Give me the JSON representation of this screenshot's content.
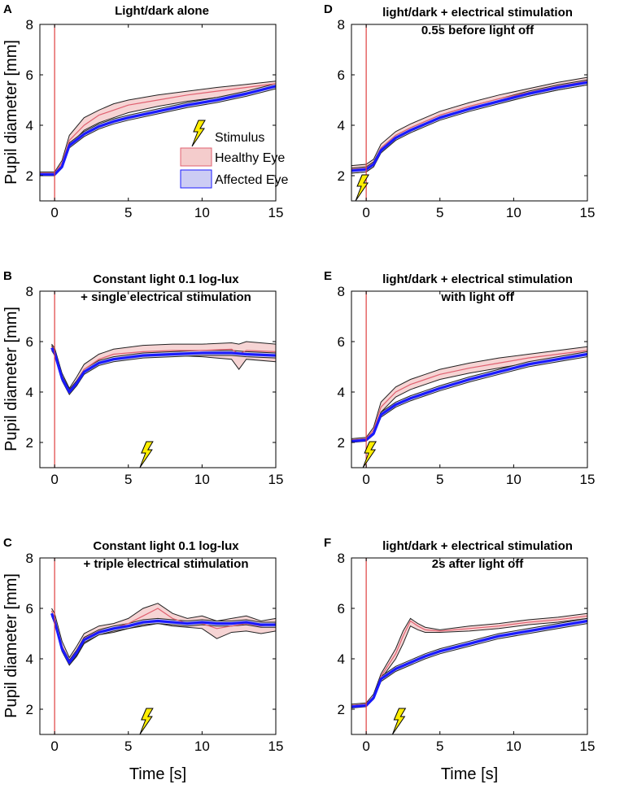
{
  "figure": {
    "ylabel": "Pupil diameter [mm]",
    "xlabel": "Time [s]"
  },
  "legend": {
    "stimulus": "Stimulus",
    "healthy": "Healthy Eye",
    "affected": "Affected Eye"
  },
  "colors": {
    "healthy_fill": "#f4cccc",
    "healthy_line": "#e06070",
    "affected_fill": "#ccccf4",
    "affected_line": "#1a1aff",
    "bound": "#222222",
    "stim_line": "#e04040",
    "bolt": "#ffee00"
  },
  "chart_data": [
    {
      "panel": "A",
      "title_lines": [
        "Light/dark alone"
      ],
      "type": "line",
      "xlim": [
        -1,
        15
      ],
      "ylim": [
        1,
        8
      ],
      "xticks": [
        "0",
        "5",
        "10",
        "15"
      ],
      "yticks": [
        "2",
        "4",
        "6",
        "8"
      ],
      "light_off_t": 0,
      "stimulus_t": null,
      "series": [
        {
          "name": "Healthy Eye",
          "t": [
            -1,
            0,
            0.5,
            1,
            2,
            3,
            4,
            5,
            7,
            9,
            11,
            13,
            15
          ],
          "mean": [
            2.1,
            2.1,
            2.5,
            3.4,
            4.0,
            4.4,
            4.6,
            4.8,
            5.0,
            5.2,
            5.35,
            5.5,
            5.65
          ],
          "lower": [
            2.05,
            2.05,
            2.4,
            3.2,
            3.8,
            4.1,
            4.3,
            4.5,
            4.75,
            4.95,
            5.1,
            5.3,
            5.5
          ],
          "upper": [
            2.15,
            2.15,
            2.6,
            3.6,
            4.3,
            4.6,
            4.85,
            5.0,
            5.2,
            5.35,
            5.5,
            5.62,
            5.75
          ]
        },
        {
          "name": "Affected Eye",
          "t": [
            -1,
            0,
            0.5,
            1,
            2,
            3,
            4,
            5,
            7,
            9,
            11,
            13,
            15
          ],
          "mean": [
            2.05,
            2.05,
            2.35,
            3.2,
            3.65,
            3.95,
            4.15,
            4.3,
            4.55,
            4.8,
            5.0,
            5.25,
            5.55
          ],
          "lower": [
            2.0,
            2.0,
            2.3,
            3.1,
            3.55,
            3.85,
            4.05,
            4.2,
            4.45,
            4.7,
            4.9,
            5.15,
            5.45
          ],
          "upper": [
            2.1,
            2.1,
            2.4,
            3.3,
            3.75,
            4.05,
            4.25,
            4.4,
            4.65,
            4.9,
            5.1,
            5.35,
            5.65
          ]
        }
      ]
    },
    {
      "panel": "D",
      "title_lines": [
        "light/dark + electrical stimulation",
        "0.5s before light off"
      ],
      "type": "line",
      "xlim": [
        -1,
        15
      ],
      "ylim": [
        1,
        8
      ],
      "xticks": [
        "0",
        "5",
        "10",
        "15"
      ],
      "yticks": [
        "2",
        "4",
        "6",
        "8"
      ],
      "light_off_t": 0,
      "stimulus_t": -0.5,
      "series": [
        {
          "name": "Healthy Eye",
          "t": [
            -1,
            0,
            0.5,
            1,
            2,
            3,
            4,
            5,
            7,
            9,
            11,
            13,
            15
          ],
          "mean": [
            2.25,
            2.3,
            2.5,
            3.1,
            3.6,
            3.9,
            4.15,
            4.4,
            4.75,
            5.05,
            5.3,
            5.55,
            5.75
          ],
          "lower": [
            2.1,
            2.15,
            2.35,
            2.95,
            3.45,
            3.75,
            4.0,
            4.25,
            4.6,
            4.9,
            5.15,
            5.4,
            5.6
          ],
          "upper": [
            2.4,
            2.45,
            2.65,
            3.25,
            3.75,
            4.05,
            4.3,
            4.55,
            4.9,
            5.2,
            5.45,
            5.7,
            5.9
          ]
        },
        {
          "name": "Affected Eye",
          "t": [
            -1,
            0,
            0.5,
            1,
            2,
            3,
            4,
            5,
            7,
            9,
            11,
            13,
            15
          ],
          "mean": [
            2.2,
            2.25,
            2.45,
            3.0,
            3.5,
            3.8,
            4.05,
            4.3,
            4.65,
            4.95,
            5.25,
            5.5,
            5.7
          ],
          "lower": [
            2.1,
            2.15,
            2.35,
            2.9,
            3.4,
            3.7,
            3.95,
            4.2,
            4.55,
            4.85,
            5.15,
            5.4,
            5.6
          ],
          "upper": [
            2.3,
            2.35,
            2.55,
            3.1,
            3.6,
            3.9,
            4.15,
            4.4,
            4.75,
            5.05,
            5.35,
            5.6,
            5.8
          ]
        }
      ]
    },
    {
      "panel": "B",
      "title_lines": [
        "Constant light 0.1 log-lux",
        "+ single electrical stimulation"
      ],
      "type": "line",
      "xlim": [
        -1,
        15
      ],
      "ylim": [
        1,
        8
      ],
      "xticks": [
        "0",
        "5",
        "10",
        "15"
      ],
      "yticks": [
        "2",
        "4",
        "6",
        "8"
      ],
      "light_off_t": 0,
      "stimulus_t": 6,
      "series": [
        {
          "name": "Healthy Eye",
          "t": [
            -0.2,
            0,
            0.5,
            1,
            1.5,
            2,
            3,
            4,
            6,
            8,
            10,
            12,
            12.5,
            13,
            15
          ],
          "mean": [
            5.8,
            5.6,
            4.6,
            4.05,
            4.4,
            4.9,
            5.3,
            5.5,
            5.6,
            5.65,
            5.65,
            5.7,
            5.5,
            5.65,
            5.6
          ],
          "lower": [
            5.7,
            5.5,
            4.5,
            3.95,
            4.25,
            4.75,
            5.1,
            5.3,
            5.4,
            5.45,
            5.4,
            5.3,
            4.9,
            5.3,
            5.2
          ],
          "upper": [
            5.9,
            5.75,
            4.75,
            4.15,
            4.6,
            5.1,
            5.5,
            5.7,
            5.85,
            5.9,
            5.9,
            5.95,
            5.9,
            6.0,
            5.9
          ]
        },
        {
          "name": "Affected Eye",
          "t": [
            -0.2,
            0,
            0.5,
            1,
            1.5,
            2,
            3,
            4,
            6,
            8,
            10,
            12,
            13,
            15
          ],
          "mean": [
            5.75,
            5.55,
            4.55,
            4.0,
            4.35,
            4.8,
            5.15,
            5.3,
            5.45,
            5.5,
            5.55,
            5.55,
            5.5,
            5.45
          ],
          "lower": [
            5.65,
            5.45,
            4.45,
            3.9,
            4.25,
            4.7,
            5.05,
            5.2,
            5.35,
            5.4,
            5.45,
            5.45,
            5.4,
            5.35
          ],
          "upper": [
            5.85,
            5.65,
            4.65,
            4.1,
            4.45,
            4.9,
            5.25,
            5.4,
            5.55,
            5.6,
            5.65,
            5.65,
            5.6,
            5.55
          ]
        }
      ]
    },
    {
      "panel": "E",
      "title_lines": [
        "light/dark + electrical stimulation",
        "with light off"
      ],
      "type": "line",
      "xlim": [
        -1,
        15
      ],
      "ylim": [
        1,
        8
      ],
      "xticks": [
        "0",
        "5",
        "10",
        "15"
      ],
      "yticks": [
        "2",
        "4",
        "6",
        "8"
      ],
      "light_off_t": 0,
      "stimulus_t": 0,
      "series": [
        {
          "name": "Healthy Eye",
          "t": [
            -1,
            0,
            0.5,
            1,
            2,
            3,
            4,
            5,
            7,
            9,
            11,
            13,
            15
          ],
          "mean": [
            2.1,
            2.15,
            2.5,
            3.4,
            4.0,
            4.3,
            4.5,
            4.7,
            4.95,
            5.15,
            5.35,
            5.5,
            5.65
          ],
          "lower": [
            2.05,
            2.1,
            2.4,
            3.2,
            3.8,
            4.1,
            4.3,
            4.5,
            4.75,
            4.95,
            5.15,
            5.3,
            5.5
          ],
          "upper": [
            2.15,
            2.2,
            2.6,
            3.6,
            4.2,
            4.5,
            4.7,
            4.9,
            5.15,
            5.35,
            5.5,
            5.65,
            5.8
          ]
        },
        {
          "name": "Affected Eye",
          "t": [
            -1,
            0,
            0.5,
            1,
            2,
            3,
            4,
            5,
            7,
            9,
            11,
            13,
            15
          ],
          "mean": [
            2.05,
            2.1,
            2.35,
            3.1,
            3.5,
            3.75,
            3.95,
            4.15,
            4.5,
            4.8,
            5.1,
            5.3,
            5.5
          ],
          "lower": [
            2.0,
            2.05,
            2.3,
            3.0,
            3.4,
            3.65,
            3.85,
            4.05,
            4.4,
            4.7,
            5.0,
            5.2,
            5.4
          ],
          "upper": [
            2.1,
            2.15,
            2.4,
            3.2,
            3.6,
            3.85,
            4.05,
            4.25,
            4.6,
            4.9,
            5.2,
            5.4,
            5.6
          ]
        }
      ]
    },
    {
      "panel": "C",
      "title_lines": [
        "Constant light 0.1  log-lux",
        "+ triple electrical stimulation"
      ],
      "type": "line",
      "xlim": [
        -1,
        15
      ],
      "ylim": [
        1,
        8
      ],
      "xticks": [
        "0",
        "5",
        "10",
        "15"
      ],
      "yticks": [
        "2",
        "4",
        "6",
        "8"
      ],
      "light_off_t": 0,
      "stimulus_t": 6,
      "series": [
        {
          "name": "Healthy Eye",
          "t": [
            -0.2,
            0,
            0.5,
            1,
            1.5,
            2,
            3,
            4,
            5,
            6,
            7,
            8,
            9,
            10,
            11,
            12,
            13,
            14,
            15
          ],
          "mean": [
            5.9,
            5.6,
            4.5,
            3.9,
            4.3,
            4.8,
            5.1,
            5.2,
            5.4,
            5.7,
            6.0,
            5.6,
            5.4,
            5.4,
            5.2,
            5.3,
            5.4,
            5.3,
            5.4
          ],
          "lower": [
            5.7,
            5.4,
            4.3,
            3.75,
            4.1,
            4.6,
            4.95,
            5.05,
            5.2,
            5.3,
            5.4,
            5.3,
            5.25,
            5.2,
            4.8,
            5.05,
            5.1,
            5.0,
            5.1
          ],
          "upper": [
            6.0,
            5.8,
            4.7,
            4.05,
            4.5,
            5.0,
            5.3,
            5.4,
            5.6,
            6.0,
            6.2,
            5.8,
            5.6,
            5.7,
            5.5,
            5.6,
            5.7,
            5.5,
            5.6
          ]
        },
        {
          "name": "Affected Eye",
          "t": [
            -0.2,
            0,
            0.5,
            1,
            1.5,
            2,
            3,
            4,
            5,
            6,
            7,
            8,
            9,
            10,
            11,
            12,
            13,
            14,
            15
          ],
          "mean": [
            5.8,
            5.5,
            4.4,
            3.85,
            4.25,
            4.75,
            5.05,
            5.2,
            5.3,
            5.45,
            5.5,
            5.45,
            5.4,
            5.45,
            5.4,
            5.4,
            5.45,
            5.35,
            5.35
          ],
          "lower": [
            5.7,
            5.4,
            4.3,
            3.75,
            4.15,
            4.65,
            4.95,
            5.1,
            5.2,
            5.35,
            5.4,
            5.35,
            5.3,
            5.35,
            5.3,
            5.3,
            5.35,
            5.25,
            5.25
          ],
          "upper": [
            5.9,
            5.6,
            4.5,
            3.95,
            4.35,
            4.85,
            5.15,
            5.3,
            5.4,
            5.55,
            5.6,
            5.55,
            5.5,
            5.55,
            5.5,
            5.5,
            5.55,
            5.45,
            5.45
          ]
        }
      ]
    },
    {
      "panel": "F",
      "title_lines": [
        "light/dark + electrical stimulation",
        "2s after light off"
      ],
      "type": "line",
      "xlim": [
        -1,
        15
      ],
      "ylim": [
        1,
        8
      ],
      "xticks": [
        "0",
        "5",
        "10",
        "15"
      ],
      "yticks": [
        "2",
        "4",
        "6",
        "8"
      ],
      "light_off_t": 0,
      "stimulus_t": 2,
      "series": [
        {
          "name": "Healthy Eye",
          "t": [
            -1,
            0,
            0.5,
            1,
            2,
            2.5,
            3,
            3.5,
            4,
            5,
            7,
            9,
            11,
            13,
            15
          ],
          "mean": [
            2.15,
            2.2,
            2.5,
            3.3,
            4.2,
            4.9,
            5.5,
            5.3,
            5.15,
            5.1,
            5.2,
            5.3,
            5.45,
            5.55,
            5.7
          ],
          "lower": [
            2.1,
            2.15,
            2.4,
            3.2,
            4.0,
            4.6,
            5.3,
            5.15,
            5.05,
            5.05,
            5.1,
            5.2,
            5.35,
            5.45,
            5.6
          ],
          "upper": [
            2.2,
            2.25,
            2.6,
            3.4,
            4.4,
            5.1,
            5.6,
            5.4,
            5.25,
            5.15,
            5.3,
            5.4,
            5.55,
            5.65,
            5.8
          ]
        },
        {
          "name": "Affected Eye",
          "t": [
            -1,
            0,
            0.5,
            1,
            2,
            3,
            4,
            5,
            7,
            9,
            11,
            13,
            15
          ],
          "mean": [
            2.1,
            2.15,
            2.45,
            3.2,
            3.6,
            3.85,
            4.1,
            4.3,
            4.6,
            4.9,
            5.1,
            5.3,
            5.5
          ],
          "lower": [
            2.05,
            2.1,
            2.4,
            3.1,
            3.5,
            3.75,
            4.0,
            4.2,
            4.5,
            4.8,
            5.0,
            5.2,
            5.4
          ],
          "upper": [
            2.15,
            2.2,
            2.5,
            3.3,
            3.7,
            3.95,
            4.2,
            4.4,
            4.7,
            5.0,
            5.2,
            5.4,
            5.6
          ]
        }
      ]
    }
  ]
}
